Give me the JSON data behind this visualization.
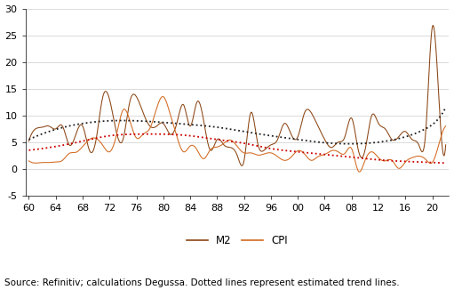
{
  "m2_color": "#8B4513",
  "cpi_color": "#D2691E",
  "m2_trend_color": "#222222",
  "cpi_trend_color": "#CC0000",
  "source_text": "Source: Refinitiv; calculations Degussa. Dotted lines represent estimated trend lines.",
  "legend_m2": "M2",
  "legend_cpi": "CPI",
  "background_color": "#ffffff",
  "grid_color": "#cccccc",
  "font_size_tick": 8,
  "font_size_source": 7.5,
  "year_start": 1960,
  "year_end": 2022,
  "xlim_left": 1959.5,
  "xlim_right": 2022.5,
  "ylim": [
    -5,
    30
  ],
  "yticks": [
    -5,
    0,
    5,
    10,
    15,
    20,
    25,
    30
  ],
  "xtick_years": [
    1960,
    1964,
    1968,
    1972,
    1976,
    1980,
    1984,
    1988,
    1992,
    1996,
    2000,
    2004,
    2008,
    2012,
    2016,
    2020
  ],
  "xtick_labels": [
    "60",
    "64",
    "68",
    "72",
    "76",
    "80",
    "84",
    "88",
    "92",
    "96",
    "00",
    "04",
    "08",
    "12",
    "16",
    "20"
  ],
  "m2_years": [
    1960,
    1961,
    1962,
    1963,
    1964,
    1965,
    1966,
    1967,
    1968,
    1969,
    1970,
    1971,
    1972,
    1973,
    1974,
    1975,
    1976,
    1977,
    1978,
    1979,
    1980,
    1981,
    1982,
    1983,
    1984,
    1985,
    1986,
    1987,
    1988,
    1989,
    1990,
    1991,
    1992,
    1993,
    1994,
    1995,
    1996,
    1997,
    1998,
    1999,
    2000,
    2001,
    2002,
    2003,
    2004,
    2005,
    2006,
    2007,
    2008,
    2009,
    2010,
    2011,
    2012,
    2013,
    2014,
    2015,
    2016,
    2017,
    2018,
    2019,
    2020,
    2021,
    2022
  ],
  "m2_values": [
    5.2,
    7.5,
    7.8,
    8.0,
    7.5,
    8.0,
    4.5,
    6.5,
    8.0,
    3.5,
    5.5,
    13.5,
    13.0,
    7.0,
    5.5,
    12.5,
    13.5,
    10.5,
    8.0,
    8.0,
    8.5,
    6.5,
    8.5,
    12.0,
    8.0,
    12.5,
    9.0,
    3.5,
    5.5,
    4.5,
    4.0,
    2.5,
    1.5,
    10.5,
    5.0,
    3.5,
    4.5,
    5.5,
    8.5,
    6.5,
    6.0,
    10.5,
    10.5,
    8.0,
    5.5,
    4.0,
    5.0,
    6.0,
    9.5,
    3.5,
    3.5,
    10.0,
    8.5,
    7.5,
    5.5,
    6.0,
    7.0,
    5.5,
    4.5,
    6.5,
    26.5,
    13.0,
    4.5
  ],
  "cpi_years": [
    1960,
    1961,
    1962,
    1963,
    1964,
    1965,
    1966,
    1967,
    1968,
    1969,
    1970,
    1971,
    1972,
    1973,
    1974,
    1975,
    1976,
    1977,
    1978,
    1979,
    1980,
    1981,
    1982,
    1983,
    1984,
    1985,
    1986,
    1987,
    1988,
    1989,
    1990,
    1991,
    1992,
    1993,
    1994,
    1995,
    1996,
    1997,
    1998,
    1999,
    2000,
    2001,
    2002,
    2003,
    2004,
    2005,
    2006,
    2007,
    2008,
    2009,
    2010,
    2011,
    2012,
    2013,
    2014,
    2015,
    2016,
    2017,
    2018,
    2019,
    2020,
    2021,
    2022
  ],
  "cpi_values": [
    1.5,
    1.1,
    1.2,
    1.2,
    1.3,
    1.6,
    2.9,
    3.1,
    4.2,
    5.5,
    5.7,
    4.4,
    3.2,
    6.2,
    11.0,
    9.1,
    5.8,
    6.5,
    7.6,
    11.3,
    13.5,
    10.3,
    6.1,
    3.2,
    4.3,
    3.6,
    1.9,
    3.6,
    4.1,
    4.8,
    5.4,
    4.2,
    3.0,
    3.0,
    2.6,
    2.8,
    3.0,
    2.3,
    1.6,
    2.2,
    3.4,
    2.8,
    1.6,
    2.3,
    2.7,
    3.4,
    3.2,
    2.9,
    3.8,
    -0.4,
    1.6,
    3.2,
    2.1,
    1.5,
    1.6,
    0.1,
    1.3,
    2.1,
    2.4,
    1.8,
    1.2,
    4.7,
    8.0
  ],
  "m2_trend_years": [
    1960,
    1963,
    1968,
    1972,
    1976,
    1980,
    1984,
    1988,
    1992,
    1996,
    2000,
    2004,
    2008,
    2012,
    2016,
    2019,
    2021,
    2022
  ],
  "m2_trend_vals": [
    5.5,
    7.0,
    8.5,
    9.0,
    9.0,
    8.7,
    8.3,
    7.8,
    7.0,
    6.2,
    5.5,
    4.9,
    4.7,
    5.0,
    6.0,
    7.5,
    9.5,
    11.5
  ],
  "cpi_trend_years": [
    1960,
    1964,
    1968,
    1972,
    1976,
    1980,
    1984,
    1988,
    1992,
    1996,
    2000,
    2004,
    2008,
    2012,
    2016,
    2020,
    2022
  ],
  "cpi_trend_vals": [
    3.5,
    4.2,
    5.2,
    6.2,
    6.5,
    6.5,
    6.2,
    5.5,
    4.8,
    3.8,
    3.2,
    2.7,
    2.2,
    1.7,
    1.4,
    1.2,
    1.1
  ]
}
